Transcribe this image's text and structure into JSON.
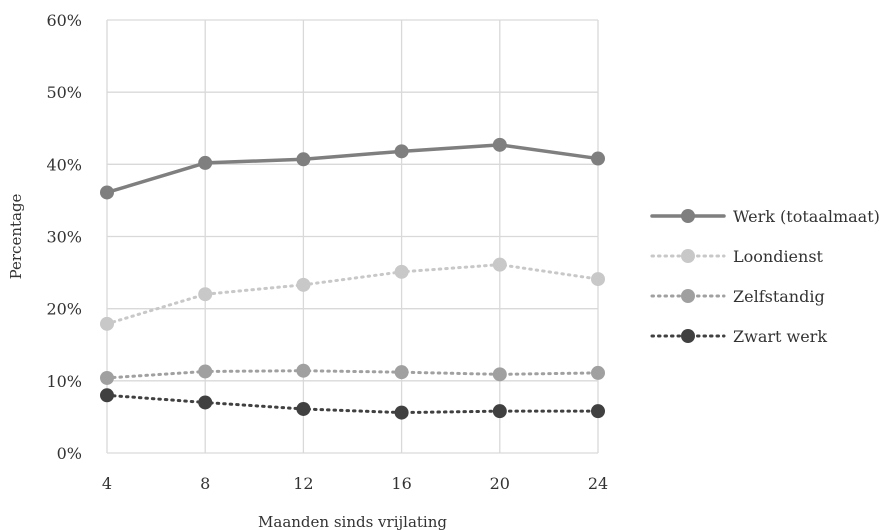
{
  "chart_data": {
    "type": "line",
    "title": "",
    "xlabel": "Maanden sinds vrijlating",
    "ylabel": "Percentage",
    "x": [
      4,
      8,
      12,
      16,
      20,
      24
    ],
    "ylim": [
      0,
      60
    ],
    "y_ticks": [
      0,
      10,
      20,
      30,
      40,
      50,
      60
    ],
    "y_tick_labels": [
      "0%",
      "10%",
      "20%",
      "30%",
      "40%",
      "50%",
      "60%"
    ],
    "x_tick_labels": [
      "4",
      "8",
      "12",
      "16",
      "20",
      "24"
    ],
    "grid": true,
    "legend_position": "right",
    "series": [
      {
        "name": "Werk (totaalmaat)",
        "values": [
          36.1,
          40.2,
          40.7,
          41.8,
          42.7,
          40.8
        ],
        "color": "#7f7f7f",
        "style": "solid"
      },
      {
        "name": "Loondienst",
        "values": [
          17.9,
          22.0,
          23.3,
          25.1,
          26.1,
          24.1
        ],
        "color": "#c8c8c8",
        "style": "dotted"
      },
      {
        "name": "Zelfstandig",
        "values": [
          10.4,
          11.3,
          11.4,
          11.2,
          10.9,
          11.1
        ],
        "color": "#a0a0a0",
        "style": "dotted"
      },
      {
        "name": "Zwart werk",
        "values": [
          8.0,
          7.0,
          6.1,
          5.6,
          5.8,
          5.8
        ],
        "color": "#404040",
        "style": "dotted"
      }
    ]
  }
}
